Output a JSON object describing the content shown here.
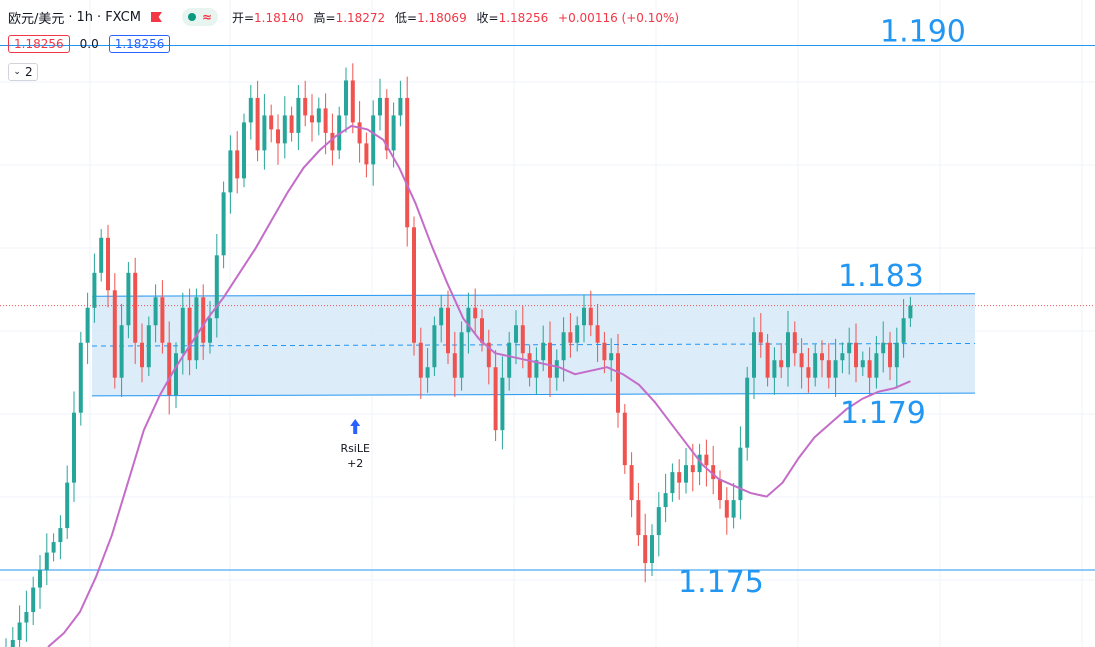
{
  "header": {
    "symbol": "欧元/美元",
    "interval": "1h",
    "source": "FXCM",
    "ohlc": [
      {
        "label": "开=",
        "value": "1.18140"
      },
      {
        "label": "高=",
        "value": "1.18272"
      },
      {
        "label": "低=",
        "value": "1.18069"
      },
      {
        "label": "收=",
        "value": "1.18256"
      }
    ],
    "change": "+0.00116 (+0.10%)",
    "bid": "1.18256",
    "spread": "0.0",
    "ask": "1.18256",
    "indicator_count": "2"
  },
  "colors": {
    "up": "#26a69a",
    "down": "#ef5350",
    "level_line": "#2196f3",
    "ma_line": "#c46dc8",
    "band_fill": "#d6e9f8"
  },
  "chart_data": {
    "type": "candlestick",
    "ylim": [
      1.1728,
      1.1913
    ],
    "levels": [
      {
        "price": 1.19,
        "label": "1.190"
      },
      {
        "price": 1.175,
        "label": "1.175"
      }
    ],
    "range_band": {
      "upper_label": "1.183",
      "lower_label": "1.179",
      "upper_start": 1.18283,
      "upper_end": 1.1829,
      "lower_start": 1.17998,
      "lower_end": 1.18006
    },
    "last_price": 1.18256,
    "signal": {
      "label": "RsiLE",
      "qty": "+2",
      "bar_index": 49
    },
    "closes": [
      1.1728,
      1.173,
      1.1735,
      1.1738,
      1.1745,
      1.175,
      1.1755,
      1.1758,
      1.1762,
      1.1775,
      1.1795,
      1.1815,
      1.1825,
      1.1835,
      1.1845,
      1.183,
      1.1805,
      1.182,
      1.1835,
      1.1815,
      1.1808,
      1.182,
      1.1828,
      1.1815,
      1.18,
      1.1812,
      1.1825,
      1.181,
      1.1828,
      1.1815,
      1.1822,
      1.184,
      1.1858,
      1.187,
      1.1862,
      1.1878,
      1.1885,
      1.187,
      1.188,
      1.1876,
      1.1872,
      1.188,
      1.1875,
      1.1885,
      1.188,
      1.1878,
      1.1882,
      1.1875,
      1.187,
      1.188,
      1.189,
      1.1878,
      1.1872,
      1.1866,
      1.188,
      1.1885,
      1.187,
      1.188,
      1.1885,
      1.1848,
      1.1815,
      1.1805,
      1.1808,
      1.182,
      1.1825,
      1.1812,
      1.1805,
      1.1818,
      1.1825,
      1.1822,
      1.1815,
      1.1808,
      1.179,
      1.1805,
      1.1815,
      1.182,
      1.1812,
      1.1805,
      1.181,
      1.1815,
      1.1805,
      1.181,
      1.1818,
      1.1815,
      1.182,
      1.1825,
      1.182,
      1.1815,
      1.181,
      1.1812,
      1.1795,
      1.178,
      1.177,
      1.176,
      1.1752,
      1.176,
      1.1768,
      1.1772,
      1.1778,
      1.1775,
      1.178,
      1.1778,
      1.1783,
      1.178,
      1.1776,
      1.177,
      1.1765,
      1.177,
      1.1785,
      1.1805,
      1.1818,
      1.1815,
      1.1805,
      1.181,
      1.1808,
      1.1818,
      1.1812,
      1.1808,
      1.1805,
      1.1812,
      1.181,
      1.1805,
      1.181,
      1.1812,
      1.1815,
      1.1808,
      1.181,
      1.1805,
      1.1812,
      1.1815,
      1.1808,
      1.1815,
      1.1822,
      1.18256
    ],
    "ma_closes": [
      1.1728,
      1.1732,
      1.1738,
      1.1748,
      1.176,
      1.1775,
      1.179,
      1.18,
      1.1808,
      1.1815,
      1.1822,
      1.1828,
      1.1835,
      1.1842,
      1.185,
      1.1858,
      1.1865,
      1.187,
      1.1874,
      1.1877,
      1.1876,
      1.1873,
      1.1865,
      1.1855,
      1.1843,
      1.1832,
      1.1822,
      1.1816,
      1.1812,
      1.1811,
      1.181,
      1.1809,
      1.1808,
      1.1806,
      1.1807,
      1.1808,
      1.1806,
      1.1803,
      1.1798,
      1.1792,
      1.1786,
      1.178,
      1.1776,
      1.1774,
      1.1772,
      1.1771,
      1.1775,
      1.1782,
      1.1788,
      1.1792,
      1.1796,
      1.1799,
      1.1801,
      1.1802,
      1.1804
    ]
  }
}
